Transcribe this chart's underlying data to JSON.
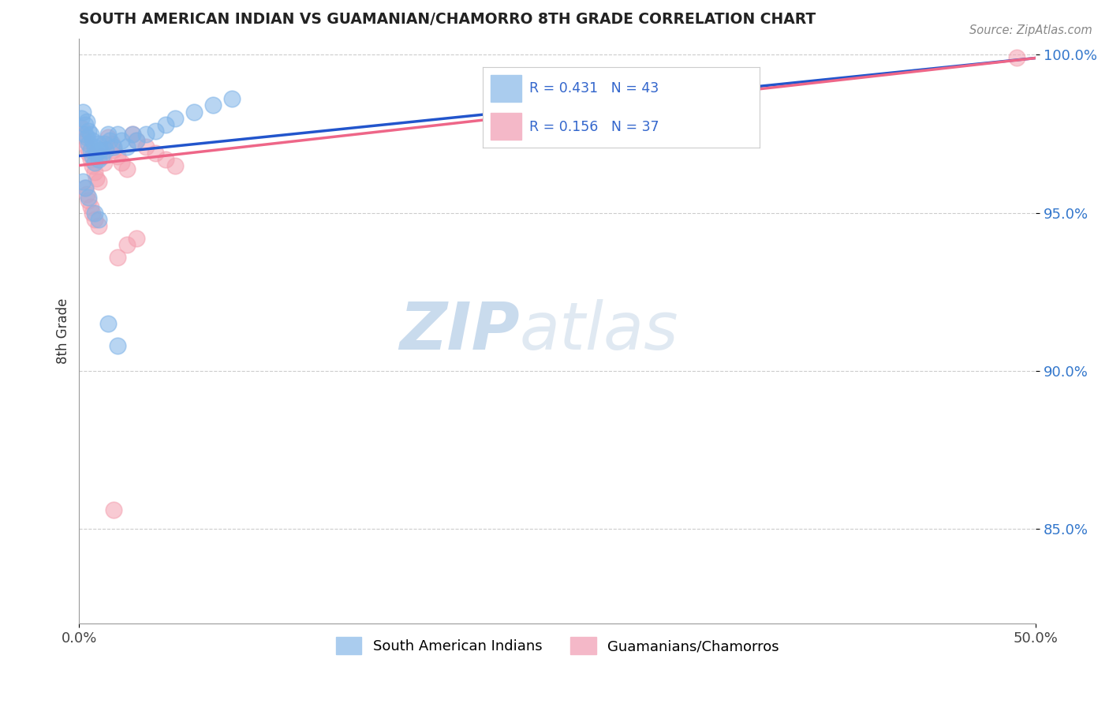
{
  "title": "SOUTH AMERICAN INDIAN VS GUAMANIAN/CHAMORRO 8TH GRADE CORRELATION CHART",
  "source": "Source: ZipAtlas.com",
  "ylabel": "8th Grade",
  "xlim": [
    0.0,
    0.5
  ],
  "ylim": [
    0.82,
    1.005
  ],
  "xtick_labels": [
    "0.0%",
    "50.0%"
  ],
  "ytick_labels": [
    "85.0%",
    "90.0%",
    "95.0%",
    "100.0%"
  ],
  "ytick_values": [
    0.85,
    0.9,
    0.95,
    1.0
  ],
  "xtick_values": [
    0.0,
    0.5
  ],
  "legend_label_blue": "South American Indians",
  "legend_label_pink": "Guamanians/Chamorros",
  "watermark_zip": "ZIP",
  "watermark_atlas": "atlas",
  "blue_color": "#7EB3E8",
  "pink_color": "#F4A0B0",
  "trendline_blue": "#2255CC",
  "trendline_pink": "#EE6688",
  "blue_scatter_x": [
    0.001,
    0.002,
    0.003,
    0.003,
    0.004,
    0.004,
    0.005,
    0.005,
    0.006,
    0.006,
    0.007,
    0.007,
    0.008,
    0.008,
    0.009,
    0.01,
    0.01,
    0.011,
    0.012,
    0.013,
    0.014,
    0.015,
    0.016,
    0.018,
    0.02,
    0.022,
    0.025,
    0.028,
    0.03,
    0.035,
    0.04,
    0.045,
    0.05,
    0.06,
    0.07,
    0.08,
    0.002,
    0.003,
    0.005,
    0.008,
    0.01,
    0.015,
    0.02
  ],
  "blue_scatter_y": [
    0.98,
    0.982,
    0.975,
    0.978,
    0.974,
    0.979,
    0.972,
    0.976,
    0.97,
    0.975,
    0.968,
    0.973,
    0.966,
    0.971,
    0.969,
    0.967,
    0.972,
    0.97,
    0.968,
    0.972,
    0.97,
    0.975,
    0.973,
    0.971,
    0.975,
    0.973,
    0.971,
    0.975,
    0.973,
    0.975,
    0.976,
    0.978,
    0.98,
    0.982,
    0.984,
    0.986,
    0.96,
    0.958,
    0.955,
    0.95,
    0.948,
    0.915,
    0.908
  ],
  "pink_scatter_x": [
    0.001,
    0.002,
    0.003,
    0.004,
    0.005,
    0.006,
    0.007,
    0.008,
    0.009,
    0.01,
    0.011,
    0.012,
    0.013,
    0.015,
    0.017,
    0.018,
    0.02,
    0.022,
    0.025,
    0.028,
    0.03,
    0.035,
    0.04,
    0.045,
    0.05,
    0.003,
    0.004,
    0.005,
    0.006,
    0.007,
    0.008,
    0.01,
    0.02,
    0.025,
    0.03,
    0.49,
    0.018
  ],
  "pink_scatter_y": [
    0.977,
    0.975,
    0.973,
    0.971,
    0.969,
    0.967,
    0.965,
    0.963,
    0.961,
    0.96,
    0.97,
    0.968,
    0.966,
    0.974,
    0.972,
    0.97,
    0.968,
    0.966,
    0.964,
    0.975,
    0.973,
    0.971,
    0.969,
    0.967,
    0.965,
    0.958,
    0.956,
    0.954,
    0.952,
    0.95,
    0.948,
    0.946,
    0.936,
    0.94,
    0.942,
    0.999,
    0.856
  ],
  "blue_trend_x": [
    0.0,
    0.5
  ],
  "blue_trend_y": [
    0.968,
    0.999
  ],
  "pink_trend_x": [
    0.0,
    0.5
  ],
  "pink_trend_y": [
    0.965,
    0.999
  ]
}
